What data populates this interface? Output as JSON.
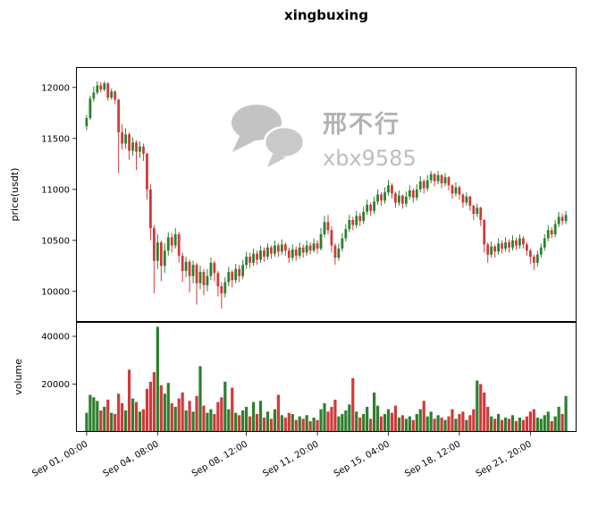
{
  "title": "xingbuxing",
  "watermark": {
    "line1": "邢不行",
    "line2": "xbx9585"
  },
  "colors": {
    "up": "#2d7f2d",
    "down": "#cf3a3a",
    "watermark_bubble": "#c3c3c3",
    "watermark_bubble2": "#c9c9c9",
    "axis": "#000000",
    "background": "#ffffff"
  },
  "chart_data": {
    "type": "candlestick",
    "title": "xingbuxing",
    "candle_interval": "4h",
    "grid": false,
    "x": {
      "tick_labels": [
        "Sep 01, 00:00",
        "Sep 04, 08:00",
        "Sep 08, 12:00",
        "Sep 11, 20:00",
        "Sep 15, 04:00",
        "Sep 18, 12:00",
        "Sep 21, 20:00"
      ],
      "tick_indices": [
        0,
        20,
        45,
        65,
        85,
        105,
        125
      ],
      "num_candles": 136
    },
    "price": {
      "ylabel": "price(usdt)",
      "yticks": [
        10000,
        10500,
        11000,
        11500,
        12000
      ],
      "ylim": [
        9700,
        12200
      ],
      "ohlc_format": [
        "open",
        "high",
        "low",
        "close"
      ],
      "candles_ohlc": [
        [
          11620,
          11730,
          11580,
          11700
        ],
        [
          11700,
          11920,
          11680,
          11890
        ],
        [
          11890,
          12010,
          11860,
          11950
        ],
        [
          11950,
          12060,
          11930,
          12020
        ],
        [
          12020,
          12050,
          11950,
          11980
        ],
        [
          11980,
          12060,
          11960,
          12040
        ],
        [
          12040,
          12050,
          11870,
          11900
        ],
        [
          11900,
          11990,
          11880,
          11960
        ],
        [
          11960,
          11970,
          11840,
          11880
        ],
        [
          11880,
          11890,
          11160,
          11560
        ],
        [
          11560,
          11640,
          11390,
          11450
        ],
        [
          11450,
          11600,
          11400,
          11540
        ],
        [
          11540,
          11560,
          11290,
          11380
        ],
        [
          11380,
          11510,
          11330,
          11460
        ],
        [
          11460,
          11480,
          11190,
          11370
        ],
        [
          11370,
          11470,
          11310,
          11420
        ],
        [
          11420,
          11450,
          11280,
          11350
        ],
        [
          11350,
          11360,
          10900,
          11000
        ],
        [
          11000,
          11050,
          10500,
          10620
        ],
        [
          10620,
          10650,
          9980,
          10300
        ],
        [
          10300,
          10560,
          10220,
          10480
        ],
        [
          10480,
          10500,
          10100,
          10250
        ],
        [
          10250,
          10470,
          10180,
          10400
        ],
        [
          10400,
          10580,
          10350,
          10530
        ],
        [
          10530,
          10570,
          10380,
          10450
        ],
        [
          10450,
          10620,
          10420,
          10560
        ],
        [
          10560,
          10580,
          10280,
          10350
        ],
        [
          10350,
          10380,
          10090,
          10200
        ],
        [
          10200,
          10340,
          10140,
          10290
        ],
        [
          10290,
          10310,
          9990,
          10150
        ],
        [
          10150,
          10300,
          10080,
          10260
        ],
        [
          10260,
          10280,
          9870,
          10080
        ],
        [
          10080,
          10250,
          10020,
          10190
        ],
        [
          10190,
          10220,
          9960,
          10060
        ],
        [
          10060,
          10220,
          10000,
          10150
        ],
        [
          10150,
          10330,
          10110,
          10280
        ],
        [
          10280,
          10300,
          10100,
          10180
        ],
        [
          10180,
          10200,
          9950,
          10050
        ],
        [
          10050,
          10090,
          9830,
          9980
        ],
        [
          9980,
          10140,
          9940,
          10090
        ],
        [
          10090,
          10240,
          10050,
          10190
        ],
        [
          10190,
          10210,
          10040,
          10110
        ],
        [
          10110,
          10270,
          10080,
          10220
        ],
        [
          10220,
          10260,
          10090,
          10150
        ],
        [
          10150,
          10310,
          10120,
          10260
        ],
        [
          10260,
          10390,
          10220,
          10340
        ],
        [
          10340,
          10380,
          10230,
          10280
        ],
        [
          10280,
          10420,
          10250,
          10370
        ],
        [
          10370,
          10400,
          10260,
          10310
        ],
        [
          10310,
          10450,
          10280,
          10400
        ],
        [
          10400,
          10430,
          10290,
          10340
        ],
        [
          10340,
          10470,
          10310,
          10430
        ],
        [
          10430,
          10450,
          10320,
          10370
        ],
        [
          10370,
          10500,
          10340,
          10450
        ],
        [
          10450,
          10470,
          10340,
          10390
        ],
        [
          10390,
          10510,
          10360,
          10460
        ],
        [
          10460,
          10480,
          10350,
          10400
        ],
        [
          10400,
          10430,
          10280,
          10330
        ],
        [
          10330,
          10460,
          10300,
          10410
        ],
        [
          10410,
          10440,
          10300,
          10350
        ],
        [
          10350,
          10480,
          10320,
          10430
        ],
        [
          10430,
          10460,
          10330,
          10380
        ],
        [
          10380,
          10500,
          10350,
          10450
        ],
        [
          10450,
          10480,
          10360,
          10400
        ],
        [
          10400,
          10520,
          10380,
          10470
        ],
        [
          10470,
          10500,
          10370,
          10420
        ],
        [
          10420,
          10620,
          10400,
          10560
        ],
        [
          10560,
          10740,
          10530,
          10680
        ],
        [
          10680,
          10750,
          10560,
          10600
        ],
        [
          10600,
          10640,
          10380,
          10450
        ],
        [
          10450,
          10470,
          10260,
          10330
        ],
        [
          10330,
          10470,
          10300,
          10420
        ],
        [
          10420,
          10570,
          10390,
          10520
        ],
        [
          10520,
          10660,
          10490,
          10610
        ],
        [
          10610,
          10750,
          10580,
          10700
        ],
        [
          10700,
          10730,
          10600,
          10650
        ],
        [
          10650,
          10790,
          10620,
          10740
        ],
        [
          10740,
          10770,
          10640,
          10690
        ],
        [
          10690,
          10830,
          10660,
          10780
        ],
        [
          10780,
          10900,
          10750,
          10850
        ],
        [
          10850,
          10870,
          10740,
          10790
        ],
        [
          10790,
          10930,
          10760,
          10880
        ],
        [
          10880,
          11000,
          10850,
          10950
        ],
        [
          10950,
          10970,
          10840,
          10890
        ],
        [
          10890,
          11020,
          10860,
          10970
        ],
        [
          10970,
          11090,
          10940,
          11040
        ],
        [
          11040,
          11060,
          10910,
          10960
        ],
        [
          10960,
          10980,
          10820,
          10870
        ],
        [
          10870,
          10990,
          10840,
          10940
        ],
        [
          10940,
          10950,
          10810,
          10860
        ],
        [
          10860,
          10980,
          10830,
          10930
        ],
        [
          10930,
          11040,
          10900,
          10990
        ],
        [
          10990,
          11010,
          10870,
          10920
        ],
        [
          10920,
          11050,
          10890,
          11000
        ],
        [
          11000,
          11130,
          10970,
          11080
        ],
        [
          11080,
          11100,
          10960,
          11010
        ],
        [
          11010,
          11140,
          10980,
          11090
        ],
        [
          11090,
          11180,
          11060,
          11150
        ],
        [
          11150,
          11160,
          11030,
          11080
        ],
        [
          11080,
          11180,
          11050,
          11140
        ],
        [
          11140,
          11150,
          11010,
          11060
        ],
        [
          11060,
          11160,
          11030,
          11120
        ],
        [
          11120,
          11130,
          10990,
          11040
        ],
        [
          11040,
          11050,
          10910,
          10960
        ],
        [
          10960,
          11070,
          10930,
          11020
        ],
        [
          11020,
          11040,
          10900,
          10950
        ],
        [
          10950,
          10960,
          10820,
          10870
        ],
        [
          10870,
          10970,
          10840,
          10930
        ],
        [
          10930,
          10940,
          10790,
          10840
        ],
        [
          10840,
          10850,
          10700,
          10760
        ],
        [
          10760,
          10860,
          10730,
          10820
        ],
        [
          10820,
          10830,
          10640,
          10700
        ],
        [
          10700,
          10710,
          10380,
          10460
        ],
        [
          10460,
          10480,
          10280,
          10360
        ],
        [
          10360,
          10490,
          10330,
          10440
        ],
        [
          10440,
          10460,
          10330,
          10390
        ],
        [
          10390,
          10520,
          10360,
          10470
        ],
        [
          10470,
          10500,
          10370,
          10420
        ],
        [
          10420,
          10530,
          10390,
          10480
        ],
        [
          10480,
          10510,
          10380,
          10430
        ],
        [
          10430,
          10550,
          10400,
          10500
        ],
        [
          10500,
          10530,
          10410,
          10450
        ],
        [
          10450,
          10560,
          10420,
          10520
        ],
        [
          10520,
          10540,
          10420,
          10460
        ],
        [
          10460,
          10480,
          10350,
          10400
        ],
        [
          10400,
          10420,
          10270,
          10340
        ],
        [
          10340,
          10360,
          10210,
          10280
        ],
        [
          10280,
          10400,
          10240,
          10360
        ],
        [
          10360,
          10470,
          10330,
          10430
        ],
        [
          10430,
          10560,
          10400,
          10520
        ],
        [
          10520,
          10650,
          10490,
          10600
        ],
        [
          10600,
          10630,
          10520,
          10560
        ],
        [
          10560,
          10700,
          10530,
          10660
        ],
        [
          10660,
          10780,
          10630,
          10730
        ],
        [
          10730,
          10760,
          10650,
          10690
        ],
        [
          10690,
          10790,
          10660,
          10750
        ]
      ]
    },
    "volume": {
      "ylabel": "volume",
      "yticks": [
        20000,
        40000
      ],
      "ylim": [
        0,
        46000
      ],
      "values": [
        8000,
        15500,
        14500,
        13000,
        9000,
        10500,
        13500,
        8000,
        7500,
        16000,
        12000,
        9000,
        26000,
        14000,
        12500,
        8500,
        9500,
        18000,
        21000,
        25000,
        44000,
        19500,
        16000,
        20500,
        12000,
        10500,
        14000,
        16500,
        9000,
        13000,
        8500,
        15000,
        27500,
        11000,
        8000,
        9500,
        7500,
        12500,
        14500,
        21000,
        9500,
        18500,
        8000,
        7000,
        9000,
        10500,
        6500,
        12500,
        7500,
        13000,
        6000,
        8500,
        5500,
        9500,
        15500,
        7000,
        6000,
        8000,
        7500,
        5000,
        6500,
        5500,
        7000,
        4500,
        6000,
        5000,
        9500,
        12000,
        8500,
        10500,
        13500,
        6500,
        7500,
        9000,
        11500,
        22500,
        8500,
        6000,
        7500,
        10500,
        5500,
        16500,
        11000,
        6500,
        7500,
        9500,
        8000,
        11000,
        6000,
        7000,
        5500,
        6500,
        5000,
        7500,
        9500,
        13000,
        6500,
        8500,
        5500,
        7000,
        6000,
        5000,
        6500,
        9500,
        5500,
        7500,
        8500,
        5000,
        7000,
        9500,
        21500,
        20000,
        16500,
        10500,
        6500,
        5500,
        7500,
        5000,
        6000,
        5500,
        7000,
        4500,
        6000,
        5000,
        6500,
        8500,
        9500,
        6000,
        5500,
        7000,
        8500,
        4500,
        6500,
        10500,
        7500,
        15000
      ]
    }
  }
}
